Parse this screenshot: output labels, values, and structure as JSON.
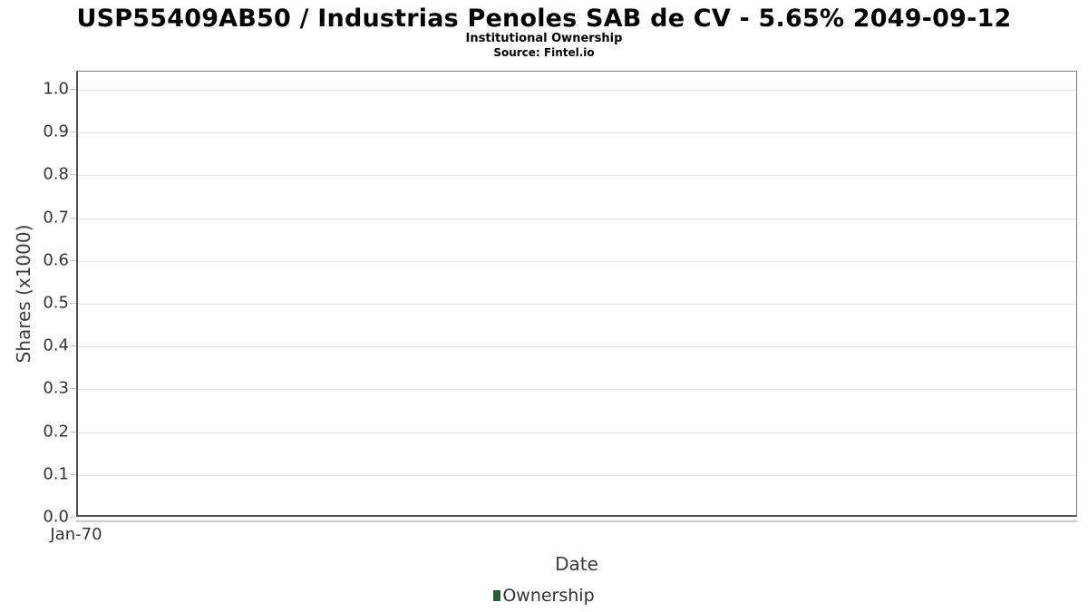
{
  "header": {
    "title": "USP55409AB50 / Industrias Penoles SAB de CV - 5.65% 2049-09-12",
    "subtitle": "Institutional Ownership",
    "source": "Source: Fintel.io"
  },
  "chart_data": {
    "type": "line",
    "title": "USP55409AB50 / Industrias Penoles SAB de CV - 5.65% 2049-09-12",
    "subtitle": "Institutional Ownership",
    "source": "Source: Fintel.io",
    "xlabel": "Date",
    "ylabel": "Shares (x1000)",
    "ylim": [
      0.0,
      1.05
    ],
    "yticks": [
      "1.0",
      "0.9",
      "0.8",
      "0.7",
      "0.6",
      "0.5",
      "0.4",
      "0.3",
      "0.2",
      "0.1",
      "0.0"
    ],
    "xticks": [
      "Jan-70"
    ],
    "grid": true,
    "legend_position": "bottom-center",
    "legend": [
      {
        "name": "Ownership",
        "color": "#285c31"
      }
    ],
    "series": [
      {
        "name": "Ownership",
        "x": [],
        "values": []
      }
    ],
    "note": "empty plot - no data points rendered"
  },
  "colors": {
    "grid": "#e4e4e4",
    "axis": "#4f4f4f",
    "border": "#7f7f7f",
    "tick_text": "#333333",
    "axis_title_text": "#3b3b3b",
    "series_green": "#285c31"
  }
}
